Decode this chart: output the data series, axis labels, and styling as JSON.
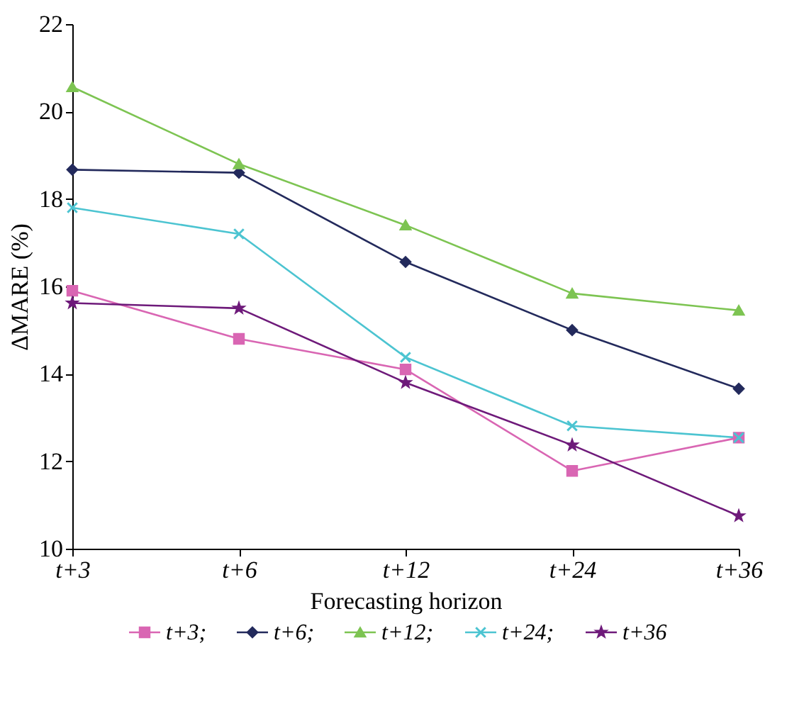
{
  "chart_data": {
    "type": "line",
    "xlabel": "Forecasting horizon",
    "ylabel": "ΔMARE (%)",
    "categories": [
      "t+3",
      "t+6",
      "t+12",
      "t+24",
      "t+36"
    ],
    "series": [
      {
        "name": "t+3;",
        "color": "#d966b3",
        "marker": "square",
        "values": [
          15.9,
          14.8,
          14.1,
          11.78,
          12.54
        ]
      },
      {
        "name": "t+6;",
        "color": "#232a5c",
        "marker": "diamond",
        "values": [
          18.67,
          18.6,
          16.56,
          15.0,
          13.66
        ]
      },
      {
        "name": "t+12;",
        "color": "#7dc452",
        "marker": "triangle",
        "values": [
          20.56,
          18.8,
          17.4,
          15.84,
          15.45
        ]
      },
      {
        "name": "t+24;",
        "color": "#4cc4d1",
        "marker": "cross",
        "values": [
          17.8,
          17.2,
          14.38,
          12.81,
          12.54
        ]
      },
      {
        "name": "t+36",
        "color": "#6e1a7a",
        "marker": "star",
        "values": [
          15.62,
          15.5,
          13.8,
          12.37,
          10.75
        ]
      }
    ],
    "ylim": [
      10,
      22
    ],
    "yticks": [
      10,
      12,
      14,
      16,
      18,
      20,
      22
    ],
    "grid": false,
    "legend": "bottom",
    "line_style": "solid"
  }
}
